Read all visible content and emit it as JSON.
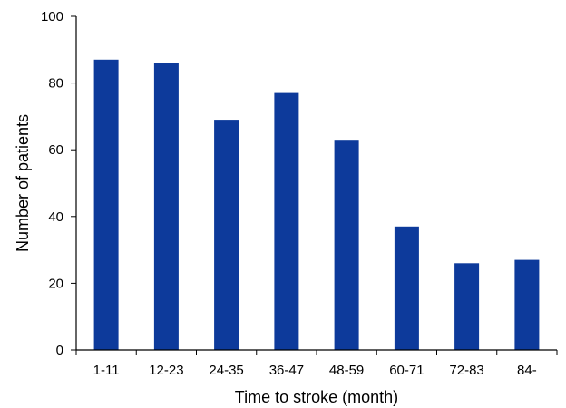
{
  "chart_data": {
    "type": "bar",
    "title": "",
    "xlabel": "Time to stroke (month)",
    "ylabel": "Number of patients",
    "categories": [
      "1-11",
      "12-23",
      "24-35",
      "36-47",
      "48-59",
      "60-71",
      "72-83",
      "84-"
    ],
    "values": [
      87,
      86,
      69,
      77,
      63,
      37,
      26,
      27
    ],
    "ylim": [
      0,
      100
    ],
    "yticks": [
      0,
      20,
      40,
      60,
      80,
      100
    ],
    "grid": false,
    "legend": "none",
    "bar_color": "#0d3a9b",
    "axis_color": "#000000"
  }
}
